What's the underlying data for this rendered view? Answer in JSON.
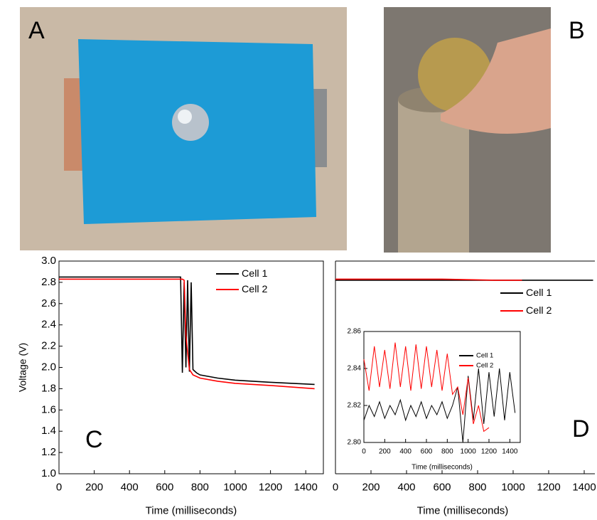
{
  "photos": [
    {
      "label": "A"
    },
    {
      "label": "B"
    }
  ],
  "chart_data": [
    {
      "type": "line",
      "annotation": "C",
      "xlabel": "Time (milliseconds)",
      "ylabel": "Voltage (V)",
      "xlim": [
        0,
        1500
      ],
      "xticks": [
        0,
        200,
        400,
        600,
        800,
        1000,
        1200,
        1400
      ],
      "ylim": [
        1,
        3
      ],
      "yticks": [
        {
          "value": 1,
          "label": "1.0"
        },
        1.2,
        1.4,
        1.6,
        1.8,
        {
          "value": 2,
          "label": "2.0"
        },
        2.2,
        2.4,
        2.6,
        2.8,
        {
          "value": 3,
          "label": "3.0"
        }
      ],
      "legend": "upper right",
      "series": [
        {
          "name": "Cell 1",
          "color": "#000000",
          "x": [
            0,
            200,
            400,
            600,
            690,
            700,
            710,
            720,
            730,
            740,
            750,
            760,
            780,
            800,
            900,
            1000,
            1200,
            1450
          ],
          "values": [
            2.85,
            2.85,
            2.85,
            2.85,
            2.85,
            1.95,
            2.8,
            2.0,
            2.82,
            1.96,
            2.8,
            1.98,
            1.95,
            1.93,
            1.9,
            1.88,
            1.86,
            1.84
          ]
        },
        {
          "name": "Cell 2",
          "color": "#ff0000",
          "x": [
            0,
            200,
            400,
            600,
            700,
            710,
            720,
            740,
            760,
            800,
            900,
            1000,
            1200,
            1450
          ],
          "values": [
            2.83,
            2.83,
            2.83,
            2.83,
            2.83,
            2.82,
            2.3,
            1.98,
            1.93,
            1.9,
            1.87,
            1.85,
            1.83,
            1.8
          ]
        }
      ]
    },
    {
      "type": "line",
      "annotation": "D",
      "xlabel": "Time (milliseconds)",
      "xlim": [
        0,
        1460
      ],
      "xticks": [
        0,
        200,
        400,
        600,
        800,
        1000,
        1200,
        1400
      ],
      "ylim": [
        1,
        3
      ],
      "legend": "right",
      "series": [
        {
          "name": "Cell 1",
          "color": "#000000",
          "x": [
            0,
            300,
            600,
            900,
            1200,
            1450
          ],
          "values": [
            2.82,
            2.82,
            2.82,
            2.82,
            2.82,
            2.82
          ]
        },
        {
          "name": "Cell 2",
          "color": "#ff0000",
          "x": [
            0,
            300,
            600,
            900,
            1050
          ],
          "values": [
            2.83,
            2.83,
            2.83,
            2.82,
            2.82
          ]
        }
      ]
    },
    {
      "type": "line",
      "xlabel": "Time (milliseconds)",
      "xlim": [
        0,
        1500
      ],
      "xticks": [
        0,
        200,
        400,
        600,
        800,
        1000,
        1200,
        1400
      ],
      "ylim": [
        2.8,
        2.86
      ],
      "yticks": [
        {
          "value": 2.8,
          "label": "2.80"
        },
        2.82,
        2.84,
        2.86
      ],
      "legend": "upper right",
      "series": [
        {
          "name": "Cell 1",
          "color": "#000000",
          "x": [
            0,
            50,
            100,
            150,
            200,
            250,
            300,
            350,
            400,
            450,
            500,
            550,
            600,
            650,
            700,
            750,
            800,
            850,
            900,
            950,
            1000,
            1050,
            1100,
            1150,
            1200,
            1250,
            1300,
            1350,
            1400,
            1450
          ],
          "values": [
            2.812,
            2.82,
            2.814,
            2.822,
            2.813,
            2.82,
            2.815,
            2.823,
            2.812,
            2.82,
            2.814,
            2.822,
            2.813,
            2.82,
            2.815,
            2.822,
            2.813,
            2.82,
            2.83,
            2.8,
            2.836,
            2.812,
            2.84,
            2.81,
            2.838,
            2.814,
            2.84,
            2.812,
            2.838,
            2.816
          ]
        },
        {
          "name": "Cell 2",
          "color": "#ff0000",
          "x": [
            0,
            50,
            100,
            150,
            200,
            250,
            300,
            350,
            400,
            450,
            500,
            550,
            600,
            650,
            700,
            750,
            800,
            850,
            900,
            950,
            1000,
            1050,
            1100,
            1150,
            1200
          ],
          "values": [
            2.845,
            2.828,
            2.852,
            2.83,
            2.85,
            2.829,
            2.854,
            2.83,
            2.852,
            2.828,
            2.853,
            2.829,
            2.852,
            2.83,
            2.85,
            2.828,
            2.848,
            2.826,
            2.83,
            2.815,
            2.835,
            2.81,
            2.82,
            2.806,
            2.808
          ]
        }
      ]
    }
  ]
}
